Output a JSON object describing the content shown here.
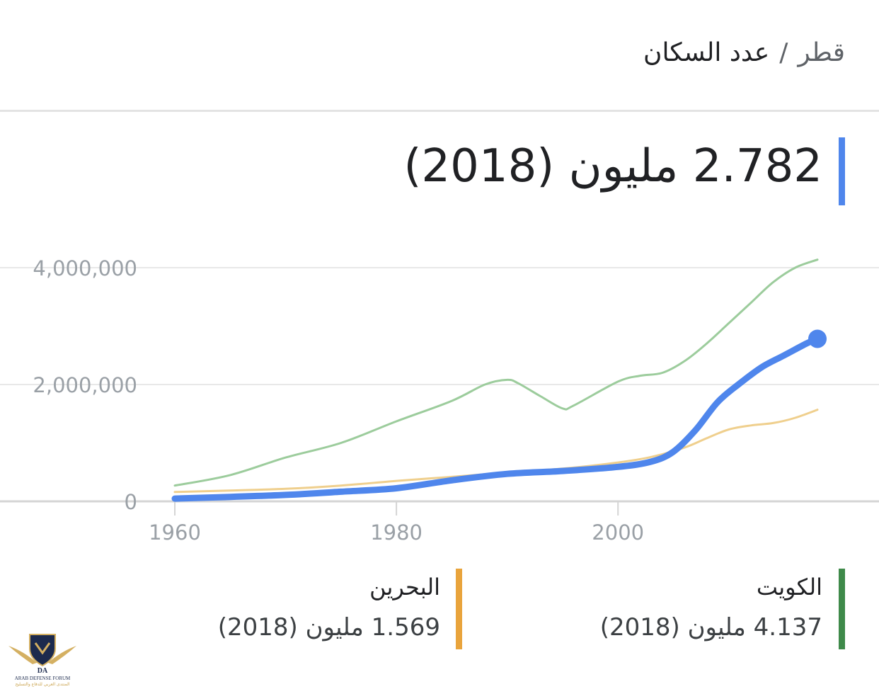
{
  "header": {
    "country": "قطر",
    "separator": "/",
    "metric": "عدد السكان"
  },
  "headline": {
    "value": "2.782 مليون (2018)"
  },
  "chart_data": {
    "type": "line",
    "title": "",
    "xlabel": "",
    "ylabel": "",
    "xlim": [
      1960,
      2018
    ],
    "ylim": [
      0,
      4000000
    ],
    "x_ticks": [
      "1960",
      "1980",
      "2000"
    ],
    "y_ticks": [
      "0",
      "2,000,000",
      "4,000,000"
    ],
    "grid": true,
    "legend_position": "bottom",
    "series": [
      {
        "name": "قطر",
        "color": "#4f86ec",
        "highlight": true,
        "x": [
          1960,
          1965,
          1970,
          1975,
          1980,
          1985,
          1990,
          1995,
          2000,
          2003,
          2005,
          2007,
          2009,
          2011,
          2013,
          2015,
          2017,
          2018
        ],
        "y": [
          47000,
          76000,
          110000,
          165000,
          224000,
          360000,
          470000,
          520000,
          590000,
          680000,
          850000,
          1220000,
          1700000,
          2020000,
          2300000,
          2500000,
          2700000,
          2782000
        ]
      },
      {
        "name": "الكويت",
        "color": "#9ccc9c",
        "highlight": false,
        "x": [
          1960,
          1965,
          1970,
          1975,
          1980,
          1985,
          1988,
          1990,
          1991,
          1993,
          1995,
          1996,
          2000,
          2002,
          2004,
          2006,
          2008,
          2010,
          2012,
          2014,
          2016,
          2018
        ],
        "y": [
          270000,
          450000,
          750000,
          1000000,
          1370000,
          1720000,
          2000000,
          2080000,
          2020000,
          1800000,
          1590000,
          1640000,
          2050000,
          2150000,
          2200000,
          2400000,
          2700000,
          3050000,
          3400000,
          3750000,
          4000000,
          4137000
        ]
      },
      {
        "name": "البحرين",
        "color": "#efcf8d",
        "highlight": false,
        "x": [
          1960,
          1965,
          1970,
          1975,
          1980,
          1985,
          1990,
          1995,
          2000,
          2003,
          2006,
          2008,
          2010,
          2012,
          2014,
          2016,
          2018
        ],
        "y": [
          160000,
          185000,
          215000,
          270000,
          350000,
          420000,
          495000,
          560000,
          665000,
          760000,
          920000,
          1080000,
          1230000,
          1300000,
          1340000,
          1430000,
          1569000
        ]
      }
    ]
  },
  "legend": {
    "items": [
      {
        "name": "الكويت",
        "value": "4.137 مليون (2018)",
        "color": "#3f8a4a"
      },
      {
        "name": "البحرين",
        "value": "1.569 مليون (2018)",
        "color": "#e9a43c"
      }
    ]
  },
  "watermark": {
    "lettering": [
      "DA",
      "ARAB DEFENSE FORUM",
      "المنتدى العربي للدفاع والتسليح"
    ]
  }
}
